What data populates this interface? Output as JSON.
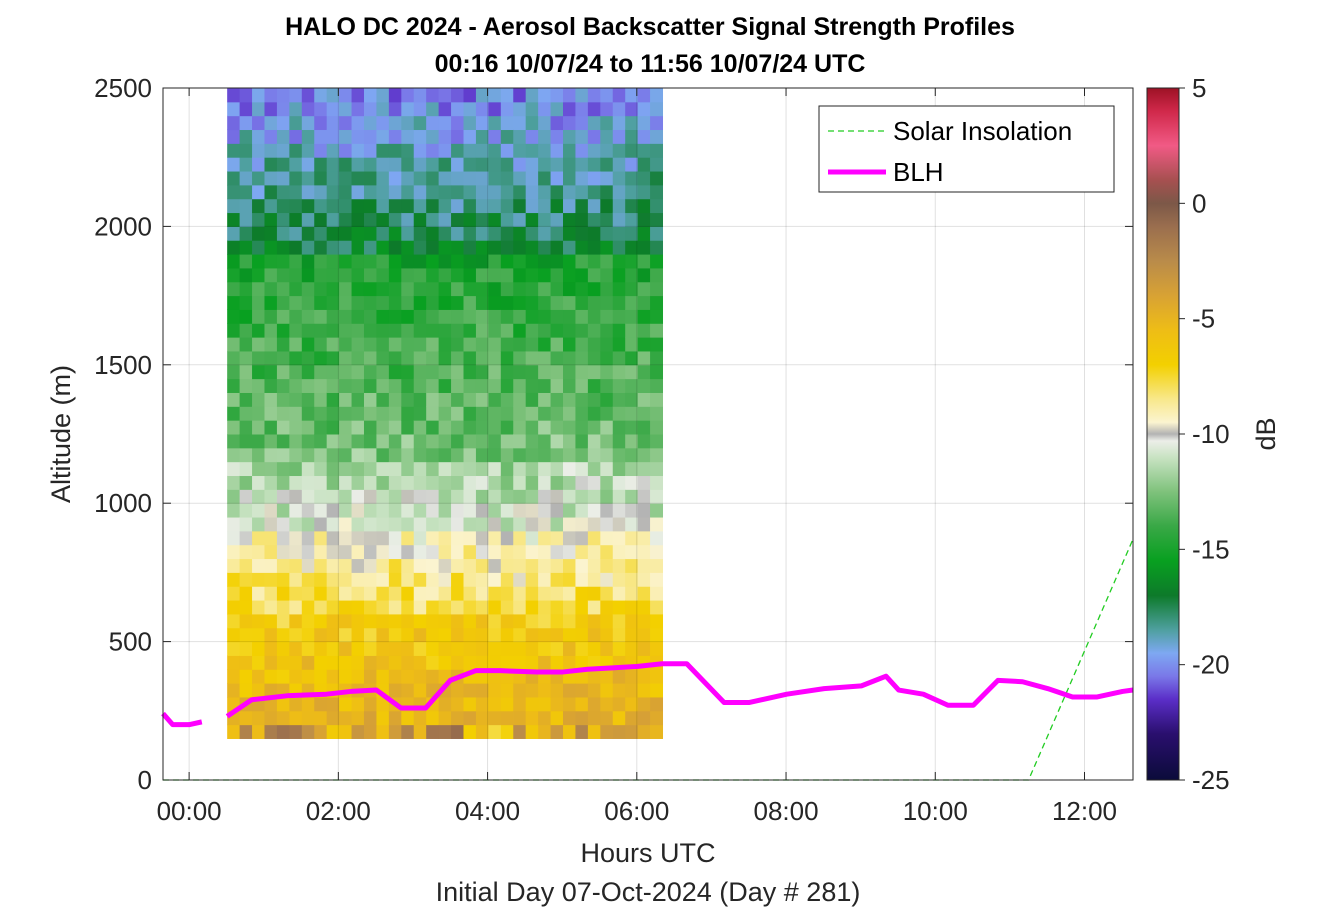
{
  "chart_data": {
    "type": "heatmap",
    "title": "HALO DC 2024 - Aerosol Backscatter Signal Strength Profiles",
    "subtitle": "00:16 10/07/24 to 11:56 10/07/24  UTC",
    "xlabel": "Hours UTC",
    "ylabel": "Altitude (m)",
    "footer": "Initial Day 07-Oct-2024 (Day # 281)",
    "colorbar_label": "dB",
    "x_ticks": [
      "00:00",
      "02:00",
      "04:00",
      "06:00",
      "08:00",
      "10:00",
      "12:00"
    ],
    "x_tick_values": [
      0,
      2,
      4,
      6,
      8,
      10,
      12
    ],
    "xlim": [
      -0.35,
      12.65
    ],
    "y_ticks": [
      "0",
      "500",
      "1000",
      "1500",
      "2000",
      "2500"
    ],
    "y_tick_values": [
      0,
      500,
      1000,
      1500,
      2000,
      2500
    ],
    "ylim": [
      0,
      2500
    ],
    "colorbar_ticks": [
      "5",
      "0",
      "-5",
      "-10",
      "-15",
      "-20",
      "-25"
    ],
    "colorbar_tick_values": [
      5,
      0,
      -5,
      -10,
      -15,
      -20,
      -25
    ],
    "clim": [
      -25,
      5
    ],
    "grid": true,
    "legend_position": "top-right",
    "colormap": [
      [
        -25,
        "#0b0b3a"
      ],
      [
        -23,
        "#2a0f6e"
      ],
      [
        -21.5,
        "#5b2ec8"
      ],
      [
        -20.5,
        "#7a78e8"
      ],
      [
        -19.5,
        "#7ea8f2"
      ],
      [
        -18.5,
        "#4fa0a0"
      ],
      [
        -17,
        "#0d7a2a"
      ],
      [
        -15.5,
        "#08a020"
      ],
      [
        -14,
        "#39a846"
      ],
      [
        -12.5,
        "#7fc27c"
      ],
      [
        -11,
        "#c9e3c3"
      ],
      [
        -10.3,
        "#eceee8"
      ],
      [
        -10,
        "#b3b3b3"
      ],
      [
        -9.5,
        "#fbf4d0"
      ],
      [
        -8.5,
        "#f8e88c"
      ],
      [
        -7,
        "#f3d000"
      ],
      [
        -5.5,
        "#eebd16"
      ],
      [
        -4,
        "#d8a234"
      ],
      [
        -2.5,
        "#b98b4a"
      ],
      [
        -1,
        "#9a6e4e"
      ],
      [
        0,
        "#7c5848"
      ],
      [
        1,
        "#a65050"
      ],
      [
        2.5,
        "#f15a85"
      ],
      [
        4,
        "#d0284a"
      ],
      [
        5,
        "#9d1225"
      ]
    ],
    "heatmap": {
      "x_start": 0.51,
      "x_step": 0.1667,
      "y_start": 150,
      "y_step": 50,
      "columns": 35,
      "rows": 48,
      "x_window": [
        0.51,
        6.56
      ]
    },
    "series": [
      {
        "name": "Solar Insolation",
        "color": "#22cc22",
        "style": "dashed",
        "x": [
          -0.35,
          11.25,
          12.65
        ],
        "y": [
          0,
          0,
          870
        ]
      },
      {
        "name": "BLH",
        "color": "#ff00ff",
        "style": "solid",
        "segments": [
          {
            "x": [
              -0.35,
              -0.22,
              0.0,
              0.17
            ],
            "y": [
              240,
              200,
              200,
              210
            ]
          },
          {
            "x": [
              0.51,
              0.84,
              1.34,
              1.84,
              2.17,
              2.51,
              2.84,
              3.17,
              3.5,
              3.84,
              4.17,
              4.67,
              5.0,
              5.34,
              5.67,
              6.0,
              6.34,
              6.67,
              7.17,
              7.51,
              8.01,
              8.51,
              9.01,
              9.34,
              9.51,
              9.84,
              10.17,
              10.51,
              10.84,
              11.17,
              11.51,
              11.84,
              12.17,
              12.51,
              12.65
            ],
            "y": [
              230,
              290,
              305,
              310,
              320,
              325,
              260,
              260,
              360,
              395,
              395,
              390,
              390,
              400,
              405,
              410,
              420,
              420,
              280,
              280,
              310,
              330,
              340,
              375,
              325,
              310,
              270,
              270,
              360,
              355,
              330,
              300,
              300,
              320,
              325
            ]
          }
        ]
      }
    ]
  }
}
